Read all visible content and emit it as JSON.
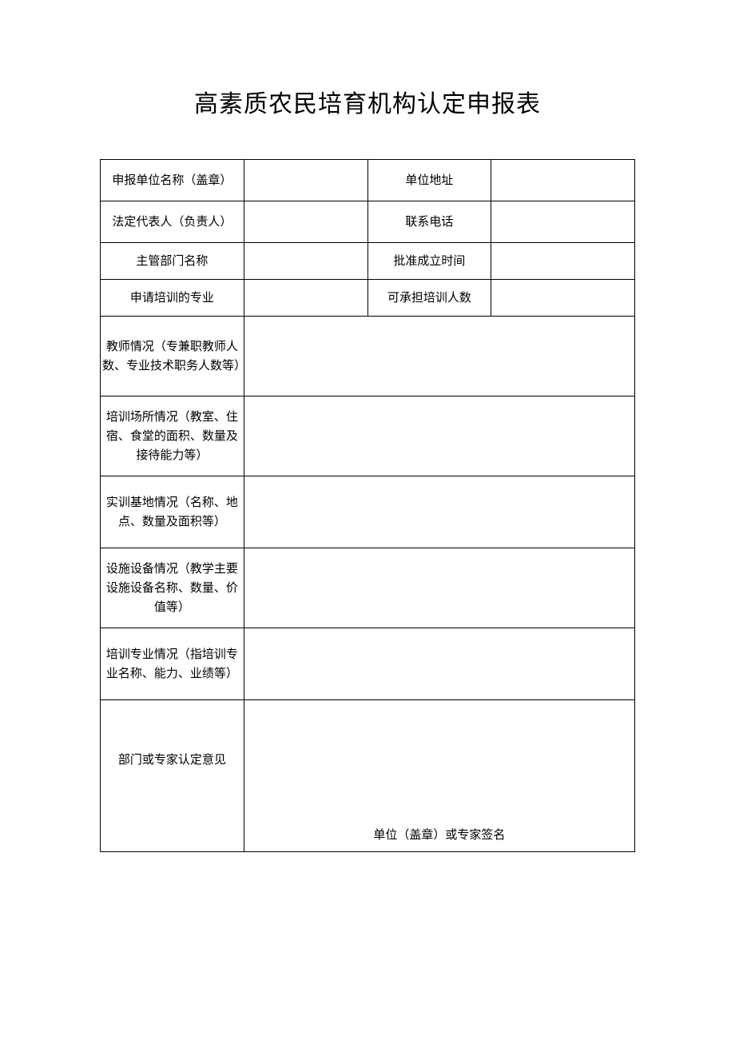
{
  "title": "高素质农民培育机构认定申报表",
  "table": {
    "rows": [
      {
        "label1": "申报单位名称（盖章）",
        "value1": "",
        "label2": "单位地址",
        "value2": ""
      },
      {
        "label1": "法定代表人（负责人）",
        "value1": "",
        "label2": "联系电话",
        "value2": ""
      },
      {
        "label1": "主管部门名称",
        "value1": "",
        "label2": "批准成立时间",
        "value2": ""
      },
      {
        "label1": "申请培训的专业",
        "value1": "",
        "label2": "可承担培训人数",
        "value2": ""
      }
    ],
    "descRows": [
      {
        "label": "教师情况（专兼职教师人数、专业技术职务人数等）",
        "value": ""
      },
      {
        "label": "培训场所情况（教室、住宿、食堂的面积、数量及接待能力等）",
        "value": ""
      },
      {
        "label": "实训基地情况（名称、地点、数量及面积等）",
        "value": ""
      },
      {
        "label": "设施设备情况（教学主要设施设备名称、数量、价值等）",
        "value": ""
      },
      {
        "label": "培训专业情况（指培训专业名称、能力、业绩等）",
        "value": ""
      }
    ],
    "opinion": {
      "label": "部门或专家认定意见",
      "signatureLabel": "单位（盖章）或专家签名",
      "value": ""
    }
  },
  "style": {
    "background_color": "#ffffff",
    "border_color": "#000000",
    "text_color": "#000000",
    "title_fontsize": 30,
    "cell_fontsize": 15,
    "font_family": "SimSun"
  }
}
